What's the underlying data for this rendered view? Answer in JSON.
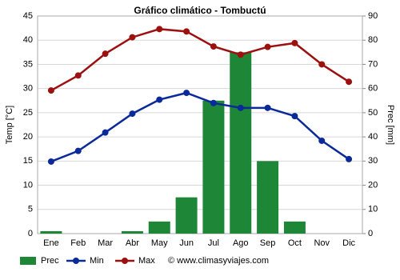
{
  "chart_data": {
    "type": "combo",
    "title": "Gráfico climático - Tombuctú",
    "categories": [
      "Ene",
      "Feb",
      "Mar",
      "Abr",
      "May",
      "Jun",
      "Jul",
      "Ago",
      "Sep",
      "Oct",
      "Nov",
      "Dic"
    ],
    "series": [
      {
        "name": "Prec",
        "type": "bar",
        "axis": "y2",
        "color": "#1e8737",
        "values": [
          1,
          0,
          0,
          1,
          5,
          15,
          55,
          75,
          30,
          5,
          0,
          0
        ]
      },
      {
        "name": "Min",
        "type": "line",
        "color": "#0b2a9a",
        "values": [
          14.9,
          17.1,
          20.9,
          24.8,
          27.7,
          29.1,
          27.0,
          26.0,
          26.0,
          24.3,
          19.2,
          15.4
        ]
      },
      {
        "name": "Max",
        "type": "line",
        "color": "#9c1010",
        "values": [
          29.6,
          32.7,
          37.2,
          40.6,
          42.3,
          41.8,
          38.7,
          37.0,
          38.6,
          39.4,
          35.0,
          31.4
        ]
      }
    ],
    "ylabel": "Temp [°C]",
    "y2label": "Prec [mm]",
    "ylim": [
      0,
      45
    ],
    "yticks": [
      0,
      5,
      10,
      15,
      20,
      25,
      30,
      35,
      40,
      45
    ],
    "y2lim": [
      0,
      90
    ],
    "y2ticks": [
      0,
      10,
      20,
      30,
      40,
      50,
      60,
      70,
      80,
      90
    ],
    "grid": true,
    "legend": "bottom",
    "watermark": "© www.climasyviajes.com"
  }
}
